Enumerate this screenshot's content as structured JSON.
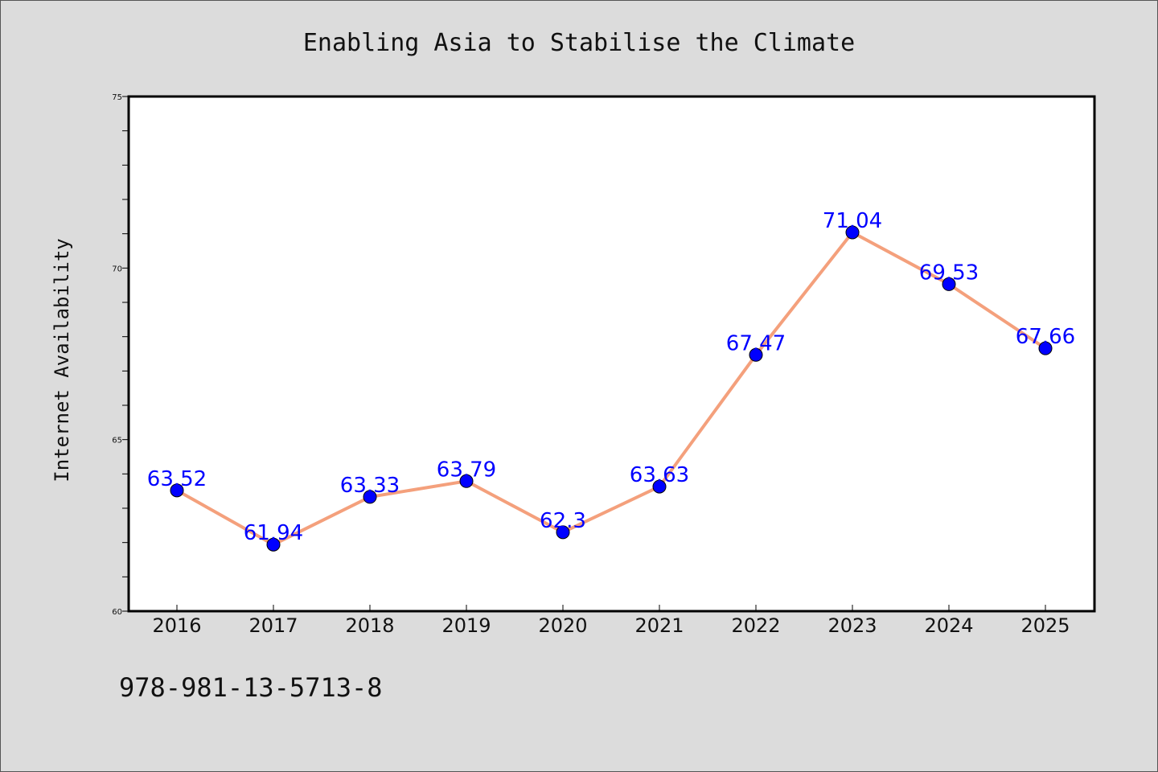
{
  "chart_data": {
    "type": "line",
    "title": "Enabling Asia to Stabilise the Climate",
    "xlabel": "",
    "ylabel": "Internet Availability",
    "categories": [
      "2016",
      "2017",
      "2018",
      "2019",
      "2020",
      "2021",
      "2022",
      "2023",
      "2024",
      "2025"
    ],
    "series": [
      {
        "values": [
          63.52,
          61.94,
          63.33,
          63.79,
          62.3,
          63.63,
          67.47,
          71.04,
          69.53,
          67.66
        ],
        "data_labels": [
          "63.52",
          "61.94",
          "63.33",
          "63.79",
          "62.3",
          "63.63",
          "67.47",
          "71.04",
          "69.53",
          "67.66"
        ]
      }
    ],
    "ylim": [
      60,
      75
    ],
    "yticks": [
      "60",
      "65",
      "70",
      "75"
    ],
    "grid": false,
    "legend": "none",
    "line_color": "#f4a07c",
    "marker_color": "#0000ff",
    "label_color": "#0000ff"
  },
  "footnote": "978-981-13-5713-8",
  "background_color": "#dcdcdc",
  "plot_background_color": "#ffffff"
}
